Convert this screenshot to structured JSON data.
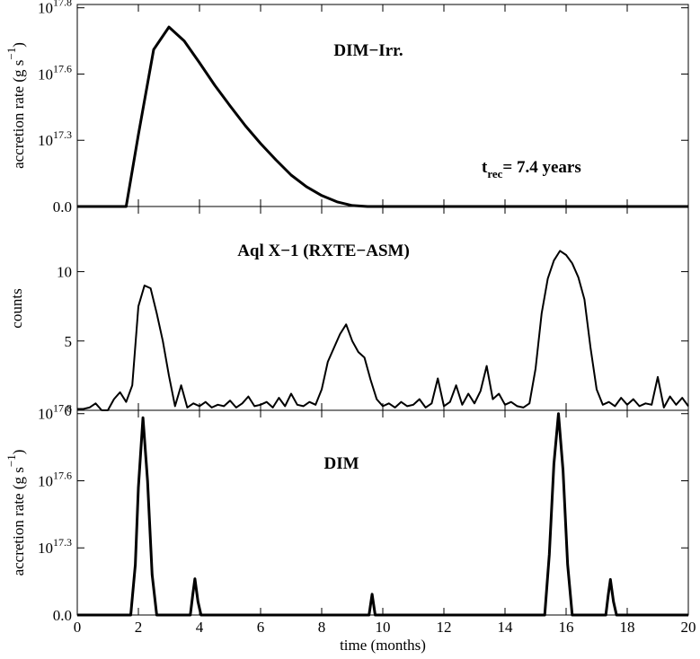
{
  "chart_data": [
    {
      "type": "line",
      "ylabel": "accretion rate (g s",
      "ylabel_sup": "−1",
      "ylabel_end": ")",
      "annotations": [
        {
          "text": "DIM−Irr."
        },
        {
          "text": "t",
          "sub": "rec",
          "rest": "= 7.4 years"
        }
      ],
      "x": [
        0,
        1.6,
        2.0,
        2.5,
        3.0,
        3.5,
        4.0,
        4.5,
        5.0,
        5.5,
        6.0,
        6.5,
        7.0,
        7.5,
        8.0,
        8.5,
        9.0,
        9.5,
        20
      ],
      "values": [
        0,
        0,
        2.17e+17,
        4.74e+17,
        5.42e+17,
        5e+17,
        4.34e+17,
        3.66e+17,
        3.04e+17,
        2.44e+17,
        1.9e+17,
        1.41e+17,
        9.5e+16,
        6e+16,
        3.3e+16,
        1.4e+16,
        3000000000000000.0,
        0,
        0
      ],
      "color": "#000000",
      "xlim": [
        0,
        20
      ],
      "ylim": [
        0,
        6.1e+17
      ],
      "yticks": [
        {
          "value": 0,
          "label": "0.0"
        },
        {
          "value": 2e+17,
          "label": "10",
          "exponent": "17.3"
        },
        {
          "value": 4e+17,
          "label": "10",
          "exponent": "17.6"
        },
        {
          "value": 6e+17,
          "label": "10",
          "exponent": "17.8"
        }
      ]
    },
    {
      "type": "line",
      "ylabel": "counts",
      "annotations": [
        {
          "text": "Aql X−1 (RXTE−ASM)"
        }
      ],
      "x": [
        0,
        0.2,
        0.4,
        0.6,
        0.8,
        1.0,
        1.2,
        1.4,
        1.6,
        1.8,
        2.0,
        2.2,
        2.4,
        2.6,
        2.8,
        3.0,
        3.2,
        3.4,
        3.6,
        3.8,
        4.0,
        4.2,
        4.4,
        4.6,
        4.8,
        5.0,
        5.2,
        5.4,
        5.6,
        5.8,
        6.0,
        6.2,
        6.4,
        6.6,
        6.8,
        7.0,
        7.2,
        7.4,
        7.6,
        7.8,
        8.0,
        8.2,
        8.4,
        8.6,
        8.8,
        9.0,
        9.2,
        9.4,
        9.6,
        9.8,
        10.0,
        10.2,
        10.4,
        10.6,
        10.8,
        11.0,
        11.2,
        11.4,
        11.6,
        11.8,
        12.0,
        12.2,
        12.4,
        12.6,
        12.8,
        13.0,
        13.2,
        13.4,
        13.6,
        13.8,
        14.0,
        14.2,
        14.4,
        14.6,
        14.8,
        15.0,
        15.2,
        15.4,
        15.6,
        15.8,
        16.0,
        16.2,
        16.4,
        16.6,
        16.8,
        17.0,
        17.2,
        17.4,
        17.6,
        17.8,
        18.0,
        18.2,
        18.4,
        18.6,
        18.8,
        19.0,
        19.2,
        19.4,
        19.6,
        19.8,
        20.0
      ],
      "values": [
        0.1,
        0.1,
        0.2,
        0.5,
        0,
        0,
        0.8,
        1.3,
        0.6,
        1.8,
        7.5,
        9.0,
        8.8,
        7.0,
        5.0,
        2.5,
        0.3,
        1.8,
        0.2,
        0.5,
        0.3,
        0.6,
        0.2,
        0.4,
        0.3,
        0.7,
        0.2,
        0.5,
        1.0,
        0.3,
        0.4,
        0.6,
        0.2,
        0.9,
        0.3,
        1.2,
        0.4,
        0.3,
        0.6,
        0.4,
        1.5,
        3.5,
        4.5,
        5.5,
        6.2,
        5.0,
        4.2,
        3.8,
        2.2,
        0.8,
        0.3,
        0.5,
        0.2,
        0.6,
        0.3,
        0.4,
        0.8,
        0.2,
        0.5,
        2.3,
        0.3,
        0.6,
        1.8,
        0.4,
        1.2,
        0.5,
        1.4,
        3.2,
        0.8,
        1.2,
        0.4,
        0.6,
        0.3,
        0.2,
        0.5,
        3.0,
        7.0,
        9.5,
        10.8,
        11.5,
        11.2,
        10.6,
        9.6,
        8.0,
        4.5,
        1.5,
        0.4,
        0.6,
        0.3,
        0.9,
        0.4,
        0.8,
        0.3,
        0.5,
        0.4,
        2.4,
        0.2,
        1.0,
        0.4,
        0.9,
        0.3
      ],
      "color": "#000000",
      "xlim": [
        0,
        20
      ],
      "ylim": [
        0,
        14.7
      ],
      "yticks": [
        0,
        5,
        10
      ]
    },
    {
      "type": "line",
      "ylabel": "accretion rate (g s",
      "ylabel_sup": "−1",
      "ylabel_end": ")",
      "xlabel": "time (months)",
      "annotations": [
        {
          "text": "DIM"
        }
      ],
      "x": [
        0,
        1.75,
        1.9,
        2.0,
        2.15,
        2.3,
        2.45,
        2.6,
        3.7,
        3.78,
        3.85,
        3.95,
        4.05,
        9.55,
        9.65,
        9.75,
        15.3,
        15.45,
        15.6,
        15.75,
        15.9,
        16.05,
        16.2,
        17.3,
        17.38,
        17.45,
        17.55,
        17.65,
        20
      ],
      "values": [
        0,
        0,
        1.5e+17,
        3.8e+17,
        5.88e+17,
        4e+17,
        1.2e+17,
        0,
        0,
        6e+16,
        1.08e+17,
        4e+16,
        0,
        0,
        6.2e+16,
        0,
        0,
        1.8e+17,
        4.5e+17,
        6e+17,
        4.3e+17,
        1.5e+17,
        0,
        0,
        6e+16,
        1.06e+17,
        4e+16,
        0,
        0
      ],
      "color": "#000000",
      "xlim": [
        0,
        20
      ],
      "ylim": [
        0,
        6.1e+17
      ],
      "xticks": [
        0,
        2,
        4,
        6,
        8,
        10,
        12,
        14,
        16,
        18,
        20
      ],
      "yticks": [
        {
          "value": 0,
          "label": "0.0"
        },
        {
          "value": 2e+17,
          "label": "10",
          "exponent": "17.3"
        },
        {
          "value": 4e+17,
          "label": "10",
          "exponent": "17.6"
        },
        {
          "value": 6e+17,
          "label": "10",
          "exponent": "17.8"
        }
      ]
    }
  ]
}
